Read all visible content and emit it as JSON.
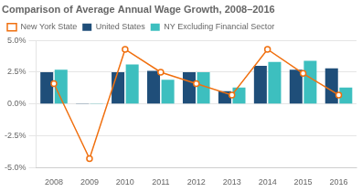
{
  "chart_data": {
    "type": "bar",
    "title": "Comparison of Average Annual Wage Growth, 2008–2016",
    "categories": [
      "2008",
      "2009",
      "2010",
      "2011",
      "2012",
      "2013",
      "2014",
      "2015",
      "2016"
    ],
    "series": [
      {
        "name": "United States",
        "color": "#1f4e79",
        "values": [
          2.5,
          0.02,
          2.5,
          2.6,
          2.5,
          1.0,
          3.0,
          2.7,
          2.8
        ]
      },
      {
        "name": "NY Excluding Financial Sector",
        "color": "#3dbfbf",
        "values": [
          2.7,
          0.02,
          3.1,
          1.9,
          2.5,
          1.3,
          3.3,
          3.4,
          1.3
        ]
      },
      {
        "name": "New York State",
        "color": "#f07010",
        "type": "line",
        "marker": "circle",
        "values": [
          1.6,
          -4.3,
          4.3,
          2.5,
          1.6,
          0.7,
          4.3,
          2.4,
          0.7
        ]
      }
    ],
    "ylim": [
      -5.0,
      5.0
    ],
    "yticks": [
      {
        "value": -5.0,
        "label": "-5.0%"
      },
      {
        "value": -2.5,
        "label": "-2.5%"
      },
      {
        "value": 0.0,
        "label": "0.0%"
      },
      {
        "value": 2.5,
        "label": "2.5%"
      },
      {
        "value": 5.0,
        "label": "5.0%"
      }
    ],
    "grid": true,
    "legend": "top"
  }
}
